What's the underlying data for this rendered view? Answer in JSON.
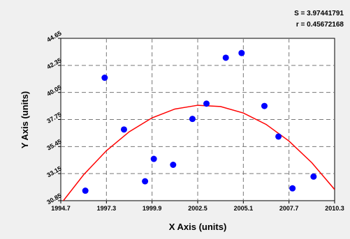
{
  "stats": {
    "s_line": "S = 3.97441791",
    "r_line": "r = 0.45672168"
  },
  "chart_data": {
    "type": "scatter",
    "title": "",
    "xlabel": "X Axis (units)",
    "ylabel": "Y Axis (units)",
    "xlim": [
      1994.7,
      2010.3
    ],
    "ylim": [
      30.85,
      44.65
    ],
    "grid": true,
    "x_ticks": [
      "1994.7",
      "1997.3",
      "1999.9",
      "2002.5",
      "2005.1",
      "2007.7",
      "2010.3"
    ],
    "y_ticks": [
      "30.85",
      "33.15",
      "35.45",
      "37.75",
      "40.05",
      "42.35",
      "44.65"
    ],
    "point_color": "#0000ff",
    "curve_color": "#ff0000",
    "points": [
      {
        "x": 1996.1,
        "y": 31.7
      },
      {
        "x": 1997.2,
        "y": 41.3
      },
      {
        "x": 1998.3,
        "y": 36.9
      },
      {
        "x": 1999.5,
        "y": 32.5
      },
      {
        "x": 2000.0,
        "y": 34.4
      },
      {
        "x": 2001.1,
        "y": 33.9
      },
      {
        "x": 2002.2,
        "y": 37.8
      },
      {
        "x": 2003.0,
        "y": 39.1
      },
      {
        "x": 2004.1,
        "y": 43.0
      },
      {
        "x": 2005.0,
        "y": 43.4
      },
      {
        "x": 2006.3,
        "y": 38.9
      },
      {
        "x": 2007.1,
        "y": 36.3
      },
      {
        "x": 2007.9,
        "y": 31.9
      },
      {
        "x": 2009.1,
        "y": 32.9
      }
    ],
    "fit_curve": {
      "model": "quadratic",
      "x": [
        1994.7,
        1996.0,
        1997.3,
        1998.6,
        1999.9,
        2001.2,
        2002.5,
        2003.8,
        2005.1,
        2006.4,
        2007.7,
        2009.0,
        2010.3
      ],
      "y": [
        30.57,
        33.05,
        35.1,
        36.71,
        37.89,
        38.64,
        38.96,
        38.85,
        38.3,
        37.33,
        35.92,
        34.08,
        31.8
      ]
    }
  }
}
